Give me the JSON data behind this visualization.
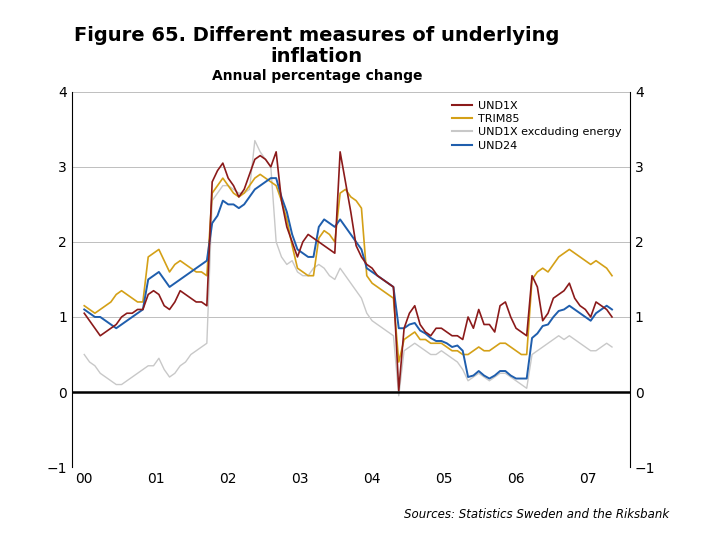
{
  "title_line1": "Figure 65. Different measures of underlying",
  "title_line2": "inflation",
  "subtitle": "Annual percentage change",
  "sources": "Sources: Statistics Sweden and the Riksbank",
  "legend_labels": [
    "UND1X",
    "TRIM85",
    "UND1X excduding energy",
    "UND24"
  ],
  "colors": {
    "UND1X": "#8B1A1A",
    "TRIM85": "#D4A017",
    "UND1X_excl_energy": "#C8C8C8",
    "UND24": "#1F5EAD"
  },
  "ylim": [
    -1,
    4
  ],
  "yticks": [
    -1,
    0,
    1,
    2,
    3,
    4
  ],
  "footer_bar_color": "#1A3A7A",
  "background_color": "#FFFFFF",
  "UND1X": [
    1.05,
    0.95,
    0.85,
    0.75,
    0.8,
    0.85,
    0.9,
    1.0,
    1.05,
    1.05,
    1.1,
    1.1,
    1.3,
    1.35,
    1.3,
    1.15,
    1.1,
    1.2,
    1.35,
    1.3,
    1.25,
    1.2,
    1.2,
    1.15,
    2.8,
    2.95,
    3.05,
    2.85,
    2.75,
    2.6,
    2.7,
    2.9,
    3.1,
    3.15,
    3.1,
    3.0,
    3.2,
    2.55,
    2.2,
    2.0,
    1.8,
    2.0,
    2.1,
    2.05,
    2.0,
    1.95,
    1.9,
    1.85,
    3.2,
    2.8,
    2.4,
    1.95,
    1.8,
    1.7,
    1.65,
    1.55,
    1.5,
    1.45,
    1.4,
    0.02,
    0.85,
    1.05,
    1.15,
    0.9,
    0.8,
    0.75,
    0.85,
    0.85,
    0.8,
    0.75,
    0.75,
    0.7,
    1.0,
    0.85,
    1.1,
    0.9,
    0.9,
    0.8,
    1.15,
    1.2,
    1.0,
    0.85,
    0.8,
    0.75,
    1.55,
    1.4,
    0.95,
    1.05,
    1.25,
    1.3,
    1.35,
    1.45,
    1.25,
    1.15,
    1.1,
    1.0,
    1.2,
    1.15,
    1.1,
    1.0
  ],
  "TRIM85": [
    1.15,
    1.1,
    1.05,
    1.1,
    1.15,
    1.2,
    1.3,
    1.35,
    1.3,
    1.25,
    1.2,
    1.2,
    1.8,
    1.85,
    1.9,
    1.75,
    1.6,
    1.7,
    1.75,
    1.7,
    1.65,
    1.6,
    1.6,
    1.55,
    2.65,
    2.75,
    2.85,
    2.75,
    2.65,
    2.6,
    2.65,
    2.75,
    2.85,
    2.9,
    2.85,
    2.8,
    2.75,
    2.55,
    2.3,
    1.95,
    1.65,
    1.6,
    1.55,
    1.55,
    2.05,
    2.15,
    2.1,
    2.0,
    2.65,
    2.7,
    2.6,
    2.55,
    2.45,
    1.55,
    1.45,
    1.4,
    1.35,
    1.3,
    1.25,
    0.4,
    0.7,
    0.75,
    0.8,
    0.7,
    0.7,
    0.65,
    0.65,
    0.65,
    0.6,
    0.55,
    0.55,
    0.5,
    0.5,
    0.55,
    0.6,
    0.55,
    0.55,
    0.6,
    0.65,
    0.65,
    0.6,
    0.55,
    0.5,
    0.5,
    1.5,
    1.6,
    1.65,
    1.6,
    1.7,
    1.8,
    1.85,
    1.9,
    1.85,
    1.8,
    1.75,
    1.7,
    1.75,
    1.7,
    1.65,
    1.55
  ],
  "UND1X_excl_energy": [
    0.5,
    0.4,
    0.35,
    0.25,
    0.2,
    0.15,
    0.1,
    0.1,
    0.15,
    0.2,
    0.25,
    0.3,
    0.35,
    0.35,
    0.45,
    0.3,
    0.2,
    0.25,
    0.35,
    0.4,
    0.5,
    0.55,
    0.6,
    0.65,
    2.55,
    2.65,
    2.75,
    2.75,
    2.7,
    2.65,
    2.65,
    2.7,
    3.35,
    3.2,
    3.1,
    3.0,
    2.0,
    1.8,
    1.7,
    1.75,
    1.6,
    1.55,
    1.55,
    1.65,
    1.7,
    1.65,
    1.55,
    1.5,
    1.65,
    1.55,
    1.45,
    1.35,
    1.25,
    1.05,
    0.95,
    0.9,
    0.85,
    0.8,
    0.75,
    -0.05,
    0.55,
    0.6,
    0.65,
    0.6,
    0.55,
    0.5,
    0.5,
    0.55,
    0.5,
    0.45,
    0.4,
    0.3,
    0.15,
    0.2,
    0.25,
    0.2,
    0.15,
    0.2,
    0.25,
    0.25,
    0.2,
    0.15,
    0.1,
    0.05,
    0.5,
    0.55,
    0.6,
    0.65,
    0.7,
    0.75,
    0.7,
    0.75,
    0.7,
    0.65,
    0.6,
    0.55,
    0.55,
    0.6,
    0.65,
    0.6
  ],
  "UND24": [
    1.1,
    1.05,
    1.0,
    1.0,
    0.95,
    0.9,
    0.85,
    0.9,
    0.95,
    1.0,
    1.05,
    1.1,
    1.5,
    1.55,
    1.6,
    1.5,
    1.4,
    1.45,
    1.5,
    1.55,
    1.6,
    1.65,
    1.7,
    1.75,
    2.25,
    2.35,
    2.55,
    2.5,
    2.5,
    2.45,
    2.5,
    2.6,
    2.7,
    2.75,
    2.8,
    2.85,
    2.85,
    2.6,
    2.4,
    2.1,
    1.9,
    1.85,
    1.8,
    1.8,
    2.2,
    2.3,
    2.25,
    2.2,
    2.3,
    2.2,
    2.1,
    2.0,
    1.9,
    1.65,
    1.6,
    1.55,
    1.5,
    1.45,
    1.4,
    0.85,
    0.85,
    0.9,
    0.92,
    0.82,
    0.78,
    0.72,
    0.68,
    0.68,
    0.65,
    0.6,
    0.62,
    0.55,
    0.2,
    0.22,
    0.28,
    0.22,
    0.18,
    0.22,
    0.28,
    0.28,
    0.22,
    0.18,
    0.18,
    0.18,
    0.72,
    0.78,
    0.88,
    0.9,
    1.0,
    1.08,
    1.1,
    1.15,
    1.1,
    1.05,
    1.0,
    0.95,
    1.05,
    1.1,
    1.15,
    1.1
  ],
  "xtick_positions": [
    2000,
    2001,
    2002,
    2003,
    2004,
    2005,
    2006,
    2007
  ],
  "xtick_labels": [
    "00",
    "01",
    "02",
    "03",
    "04",
    "05",
    "06",
    "07"
  ],
  "t_start": 2000.0,
  "t_end": 2007.33,
  "xlim_left": 1999.83,
  "xlim_right": 2007.58
}
